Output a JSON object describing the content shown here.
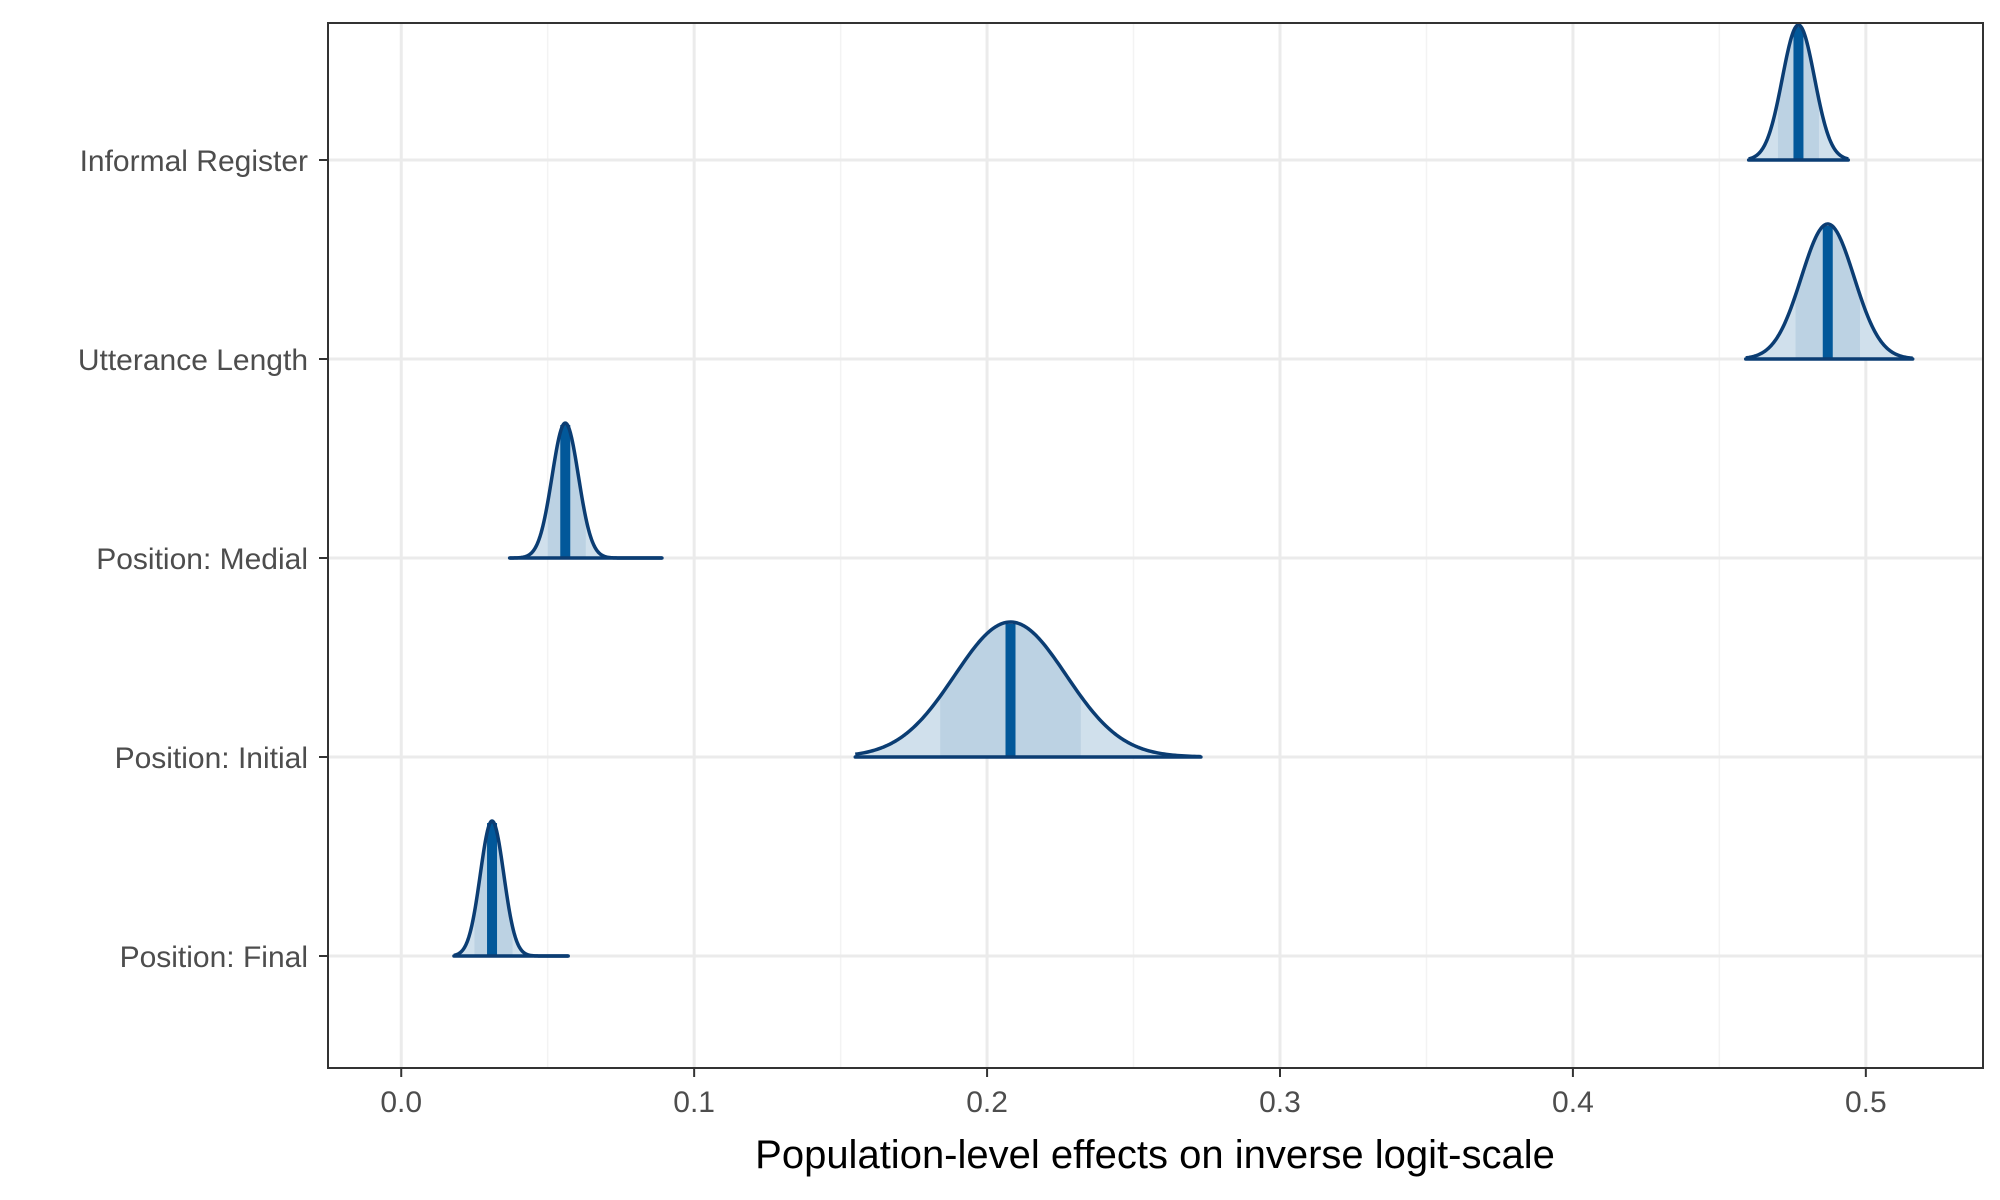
{
  "chart_data": {
    "type": "ridgeline",
    "xlabel": "Population-level effects on inverse logit-scale",
    "ylabel": "",
    "xlim": [
      -0.025,
      0.54
    ],
    "x_ticks": [
      0.0,
      0.1,
      0.2,
      0.3,
      0.4,
      0.5
    ],
    "x_tick_labels": [
      "0.0",
      "0.1",
      "0.2",
      "0.3",
      "0.4",
      "0.5"
    ],
    "grid": true,
    "colors": {
      "outline": "#0b3d73",
      "fill": "#d0e0ec",
      "inner_fill": "#bcd2e3",
      "median": "#02589a",
      "grid_major": "#ebebeb",
      "grid_minor": "#f3f3f3",
      "panel_border": "#333333"
    },
    "series": [
      {
        "name": "Informal Register",
        "median": 0.477,
        "sd": 0.0055,
        "min": 0.46,
        "max": 0.494,
        "inner": [
          0.47,
          0.484
        ]
      },
      {
        "name": "Utterance Length",
        "median": 0.487,
        "sd": 0.009,
        "min": 0.459,
        "max": 0.516,
        "inner": [
          0.476,
          0.498
        ]
      },
      {
        "name": "Position: Medial",
        "median": 0.056,
        "sd": 0.0045,
        "min": 0.037,
        "max": 0.089,
        "inner": [
          0.05,
          0.063
        ]
      },
      {
        "name": "Position: Initial",
        "median": 0.208,
        "sd": 0.019,
        "min": 0.155,
        "max": 0.273,
        "inner": [
          0.184,
          0.232
        ]
      },
      {
        "name": "Position: Final",
        "median": 0.031,
        "sd": 0.004,
        "min": 0.018,
        "max": 0.057,
        "inner": [
          0.025,
          0.038
        ]
      }
    ]
  }
}
